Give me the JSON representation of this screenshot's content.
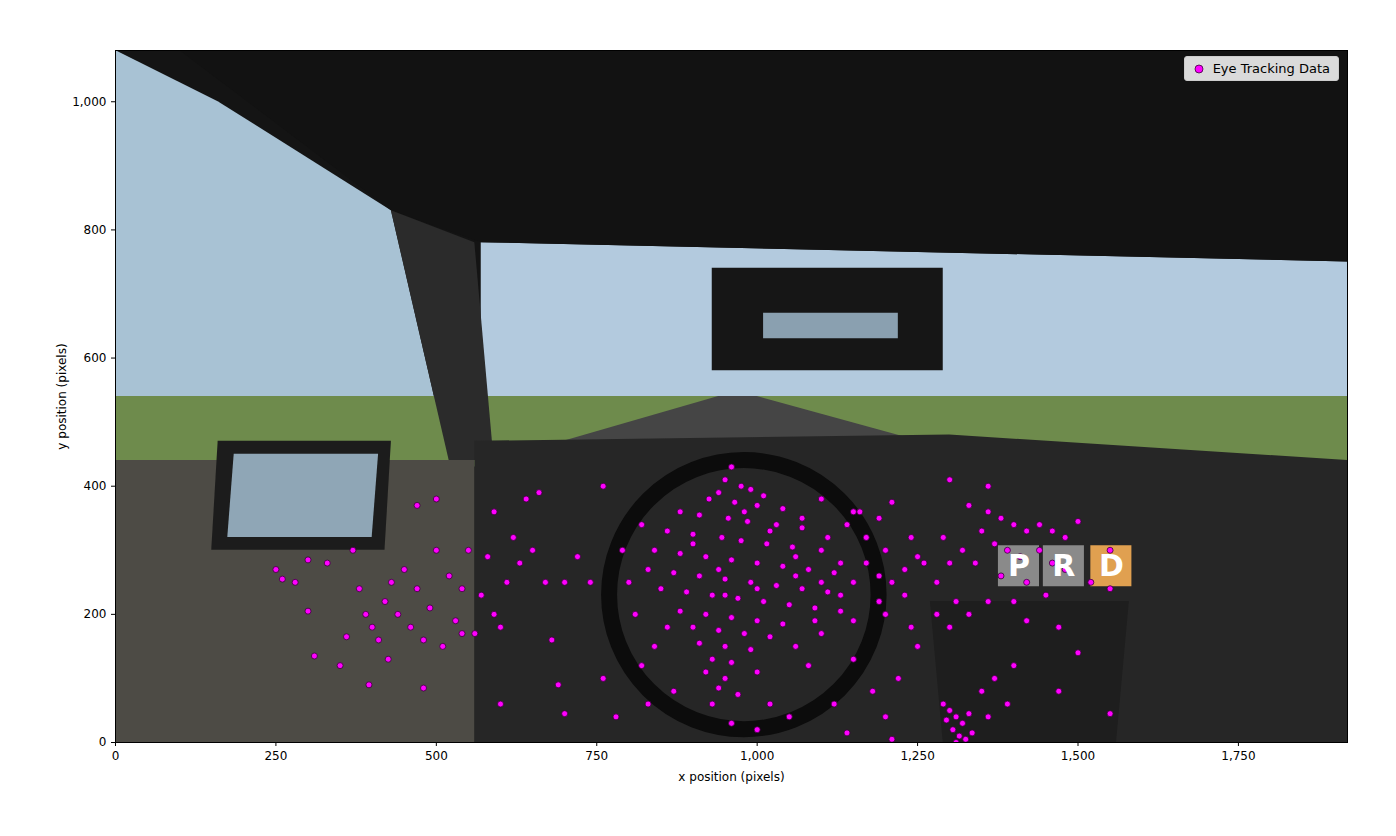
{
  "chart_data": {
    "type": "scatter",
    "xlabel": "x position (pixels)",
    "ylabel": "y position (pixels)",
    "xlim": [
      0,
      1920
    ],
    "ylim": [
      0,
      1080
    ],
    "xticks": [
      0,
      250,
      500,
      750,
      1000,
      1250,
      1500,
      1750
    ],
    "yticks": [
      0,
      200,
      400,
      600,
      800,
      1000
    ],
    "legend": "upper right",
    "series": [
      {
        "name": "Eye Tracking Data",
        "color": "#ff00ff",
        "marker": "circle",
        "x": [
          960,
          950,
          975,
          990,
          940,
          1010,
          925,
          965,
          1000,
          1040,
          880,
          910,
          955,
          985,
          1030,
          1070,
          860,
          900,
          945,
          975,
          1015,
          1055,
          1100,
          840,
          880,
          920,
          960,
          1000,
          1040,
          1080,
          1120,
          830,
          870,
          910,
          950,
          990,
          1030,
          1070,
          1110,
          1150,
          1190,
          1230,
          1260,
          1200,
          1170,
          1140,
          1160,
          1210,
          1250,
          1280,
          1230,
          1190,
          850,
          890,
          930,
          970,
          1010,
          1050,
          1090,
          1130,
          880,
          920,
          960,
          1000,
          1040,
          900,
          940,
          980,
          1020,
          910,
          950,
          990,
          930,
          960,
          920,
          950,
          940,
          970,
          930,
          1000,
          1060,
          1100,
          1150,
          1200,
          1240,
          1080,
          1020,
          1050,
          870,
          830,
          810,
          800,
          790,
          820,
          1300,
          1290,
          1310,
          1280,
          1250,
          1220,
          1180,
          1120,
          1000,
          960,
          1150,
          1100,
          1060,
          1020,
          980,
          940,
          900,
          1130,
          1170,
          1210,
          1240,
          860,
          840,
          820,
          1070,
          1100,
          1150,
          1190,
          1110,
          950,
          1000,
          1060,
          1090,
          1130,
          1330,
          1360,
          1380,
          1400,
          1420,
          1440,
          1460,
          1480,
          1500,
          1350,
          1370,
          1390,
          1410,
          1440,
          1460,
          1480,
          1520,
          1550,
          1320,
          1340,
          1380,
          1420,
          1450,
          1400,
          1360,
          1330,
          1300,
          1420,
          1470,
          1500,
          1550,
          1400,
          1370,
          1350,
          1390,
          1360,
          1470,
          1550,
          1300,
          1360,
          1300,
          1310,
          1320,
          1305,
          1315,
          1325,
          1295,
          1330,
          1290,
          1335,
          1310,
          1210,
          1140,
          1200,
          250,
          260,
          280,
          300,
          300,
          310,
          350,
          360,
          380,
          390,
          395,
          400,
          410,
          420,
          425,
          440,
          450,
          460,
          470,
          480,
          480,
          490,
          500,
          510,
          520,
          530,
          540,
          550,
          560,
          570,
          580,
          590,
          600,
          610,
          620,
          630,
          640,
          650,
          660,
          670,
          680,
          690,
          700,
          600,
          500,
          470,
          700,
          720,
          740,
          760,
          780,
          760,
          590,
          540,
          430,
          370,
          330
        ],
        "y": [
          430,
          410,
          400,
          395,
          390,
          385,
          380,
          375,
          370,
          365,
          360,
          355,
          350,
          345,
          340,
          335,
          330,
          325,
          320,
          315,
          310,
          305,
          300,
          300,
          295,
          290,
          285,
          280,
          275,
          270,
          265,
          270,
          265,
          260,
          255,
          250,
          245,
          240,
          235,
          250,
          260,
          270,
          280,
          300,
          320,
          340,
          360,
          375,
          290,
          250,
          230,
          220,
          240,
          235,
          230,
          225,
          220,
          215,
          210,
          205,
          205,
          200,
          195,
          190,
          185,
          180,
          175,
          170,
          165,
          155,
          150,
          145,
          130,
          125,
          110,
          100,
          85,
          75,
          60,
          110,
          150,
          170,
          190,
          200,
          180,
          120,
          60,
          40,
          80,
          60,
          200,
          250,
          300,
          340,
          280,
          320,
          220,
          200,
          150,
          100,
          80,
          60,
          20,
          30,
          130,
          250,
          290,
          330,
          360,
          270,
          310,
          280,
          280,
          250,
          320,
          180,
          150,
          120,
          350,
          380,
          360,
          350,
          320,
          230,
          240,
          260,
          190,
          230,
          370,
          360,
          350,
          340,
          330,
          340,
          330,
          320,
          345,
          330,
          310,
          300,
          290,
          300,
          280,
          270,
          250,
          300,
          300,
          280,
          260,
          250,
          230,
          220,
          220,
          200,
          180,
          190,
          180,
          140,
          240,
          120,
          100,
          80,
          60,
          40,
          80,
          45,
          410,
          400,
          50,
          40,
          30,
          20,
          10,
          5,
          35,
          45,
          60,
          15,
          0,
          5,
          15,
          40,
          270,
          255,
          250,
          285,
          205,
          135,
          120,
          165,
          240,
          200,
          90,
          180,
          160,
          220,
          130,
          200,
          270,
          180,
          240,
          160,
          85,
          210,
          300,
          150,
          260,
          190,
          240,
          300,
          170,
          230,
          290,
          200,
          180,
          250,
          320,
          280,
          380,
          300,
          390,
          250,
          160,
          90,
          45,
          60,
          380,
          370,
          250,
          290,
          250,
          100,
          40,
          400,
          360,
          170,
          250,
          300,
          280
        ]
      }
    ],
    "annotations": [
      {
        "text": "P",
        "x": 1408,
        "y": 275
      },
      {
        "text": "R",
        "x": 1478,
        "y": 275
      },
      {
        "text": "D",
        "x": 1552,
        "y": 275
      }
    ]
  }
}
